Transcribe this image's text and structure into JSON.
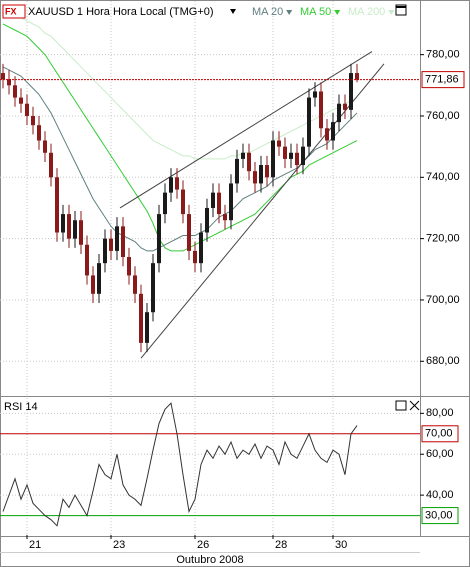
{
  "chart_data": {
    "type": "candlestick",
    "title": "XAUUSD 1 Hora Hora Local (TMG+0)",
    "indicators": [
      {
        "name": "MA 20",
        "color": "#5f7f7f",
        "values": [
          776,
          775,
          774,
          773,
          771,
          769,
          767,
          764,
          761,
          757,
          753,
          749,
          745,
          741,
          737,
          733,
          730,
          727,
          724,
          722,
          721,
          720,
          719,
          717,
          716,
          716,
          717,
          718,
          719,
          720,
          721,
          721,
          721,
          722,
          723,
          725,
          727,
          728,
          729,
          731,
          733,
          734,
          735,
          736,
          737,
          739,
          740,
          741,
          742,
          743,
          745,
          747,
          749,
          750,
          751,
          753,
          755,
          757,
          759,
          761
        ]
      },
      {
        "name": "MA 50",
        "color": "#33cc33",
        "values": [
          790,
          789,
          788,
          787,
          786,
          784,
          782,
          780,
          777,
          774,
          771,
          768,
          765,
          762,
          759,
          756,
          753,
          750,
          747,
          744,
          741,
          738,
          735,
          732,
          729,
          725,
          720,
          717,
          716,
          716,
          716,
          717,
          718,
          719,
          720,
          721,
          722,
          723,
          724,
          725,
          726,
          727,
          728,
          730,
          732,
          734,
          736,
          738,
          740,
          741,
          742,
          744,
          745,
          746,
          747,
          748,
          749,
          750,
          751,
          752
        ]
      },
      {
        "name": "MA 200",
        "color": "#c8ecc8",
        "values": [
          795,
          794,
          793,
          792,
          791,
          790,
          789,
          787,
          786,
          784,
          782,
          780,
          778,
          776,
          774,
          772,
          770,
          768,
          766,
          764,
          762,
          760,
          758,
          756,
          754,
          752,
          751,
          750,
          749,
          748,
          747,
          747,
          746,
          746,
          746,
          746,
          746,
          746,
          747,
          747,
          748,
          748,
          749,
          750,
          751,
          752,
          753,
          754,
          755,
          756,
          757,
          758,
          759,
          760,
          761,
          762,
          763,
          764,
          765,
          766
        ]
      }
    ],
    "open": [
      774,
      772,
      770,
      766,
      764,
      760,
      757,
      752,
      748,
      740,
      722,
      728,
      720,
      726,
      718,
      708,
      702,
      712,
      720,
      716,
      724,
      714,
      708,
      702,
      686,
      696,
      712,
      728,
      735,
      740,
      736,
      728,
      716,
      712,
      722,
      730,
      735,
      728,
      726,
      738,
      746,
      748,
      742,
      738,
      744,
      740,
      752,
      750,
      746,
      748,
      744,
      750,
      766,
      768,
      756,
      752,
      758,
      764,
      762,
      774
    ],
    "high": [
      777,
      775,
      773,
      769,
      767,
      763,
      760,
      755,
      751,
      743,
      731,
      731,
      729,
      729,
      721,
      711,
      715,
      723,
      723,
      727,
      727,
      717,
      711,
      705,
      699,
      715,
      731,
      738,
      743,
      743,
      739,
      731,
      719,
      725,
      733,
      738,
      738,
      731,
      741,
      749,
      751,
      751,
      745,
      747,
      747,
      755,
      755,
      753,
      751,
      751,
      753,
      769,
      771,
      771,
      759,
      761,
      767,
      767,
      777,
      777
    ],
    "low": [
      769,
      767,
      763,
      761,
      757,
      754,
      749,
      745,
      737,
      719,
      719,
      717,
      717,
      715,
      705,
      699,
      699,
      709,
      713,
      713,
      711,
      705,
      699,
      683,
      683,
      693,
      709,
      725,
      732,
      733,
      725,
      713,
      709,
      709,
      719,
      727,
      725,
      723,
      723,
      735,
      743,
      739,
      735,
      735,
      737,
      737,
      747,
      743,
      743,
      741,
      741,
      747,
      763,
      753,
      749,
      749,
      755,
      759,
      759,
      771
    ],
    "close": [
      772,
      770,
      766,
      764,
      760,
      757,
      752,
      748,
      740,
      722,
      728,
      720,
      726,
      718,
      708,
      702,
      712,
      720,
      716,
      724,
      714,
      708,
      702,
      686,
      696,
      712,
      728,
      735,
      740,
      736,
      728,
      716,
      712,
      722,
      730,
      735,
      728,
      726,
      738,
      746,
      748,
      742,
      738,
      744,
      740,
      752,
      750,
      746,
      748,
      744,
      750,
      766,
      768,
      756,
      752,
      758,
      764,
      762,
      774,
      771.86
    ],
    "up_color": "#1a1a1a",
    "down_color": "#8b1a1a",
    "trendlines": [
      {
        "x": [
          19.5,
          61.5
        ],
        "y": [
          730,
          781
        ]
      },
      {
        "x": [
          23,
          63.5
        ],
        "y": [
          681,
          777
        ]
      }
    ],
    "last_price": {
      "value": 771.86,
      "label": "771,86",
      "color": "#c00000"
    },
    "xlim": [
      -0.5,
      69.5
    ],
    "ylim": [
      669,
      797.5
    ],
    "yticks": [
      {
        "value": 680,
        "label": "680,00"
      },
      {
        "value": 700,
        "label": "700,00"
      },
      {
        "value": 720,
        "label": "720,00"
      },
      {
        "value": 740,
        "label": "740,00"
      },
      {
        "value": 760,
        "label": "760,00"
      },
      {
        "value": 780,
        "label": "780,00"
      }
    ],
    "xticks": [
      {
        "value": 4,
        "label": "21"
      },
      {
        "value": 18,
        "label": "23"
      },
      {
        "value": 32,
        "label": "26"
      },
      {
        "value": 45,
        "label": "28"
      },
      {
        "value": 55,
        "label": "30"
      }
    ],
    "xlabel": "Outubro 2008",
    "grid": true,
    "rsi": {
      "name": "RSI 14",
      "color": "#333333",
      "values": [
        32,
        40,
        48,
        38,
        45,
        36,
        33,
        30,
        28,
        25,
        38,
        34,
        40,
        35,
        30,
        42,
        55,
        50,
        48,
        60,
        45,
        40,
        38,
        35,
        48,
        62,
        75,
        82,
        85,
        70,
        50,
        32,
        38,
        55,
        62,
        58,
        64,
        60,
        66,
        58,
        62,
        60,
        65,
        58,
        64,
        62,
        55,
        66,
        60,
        58,
        64,
        70,
        62,
        58,
        56,
        62,
        60,
        50,
        70,
        74
      ],
      "ylim": [
        20.5,
        87.5
      ],
      "yticks": [
        {
          "value": 40,
          "label": "40,00"
        },
        {
          "value": 60,
          "label": "60,00"
        },
        {
          "value": 80,
          "label": "80,00"
        }
      ],
      "levels": [
        {
          "value": 70,
          "label": "70,00",
          "color": "#c00000"
        },
        {
          "value": 30,
          "label": "30,00",
          "color": "#00a000"
        }
      ]
    }
  }
}
